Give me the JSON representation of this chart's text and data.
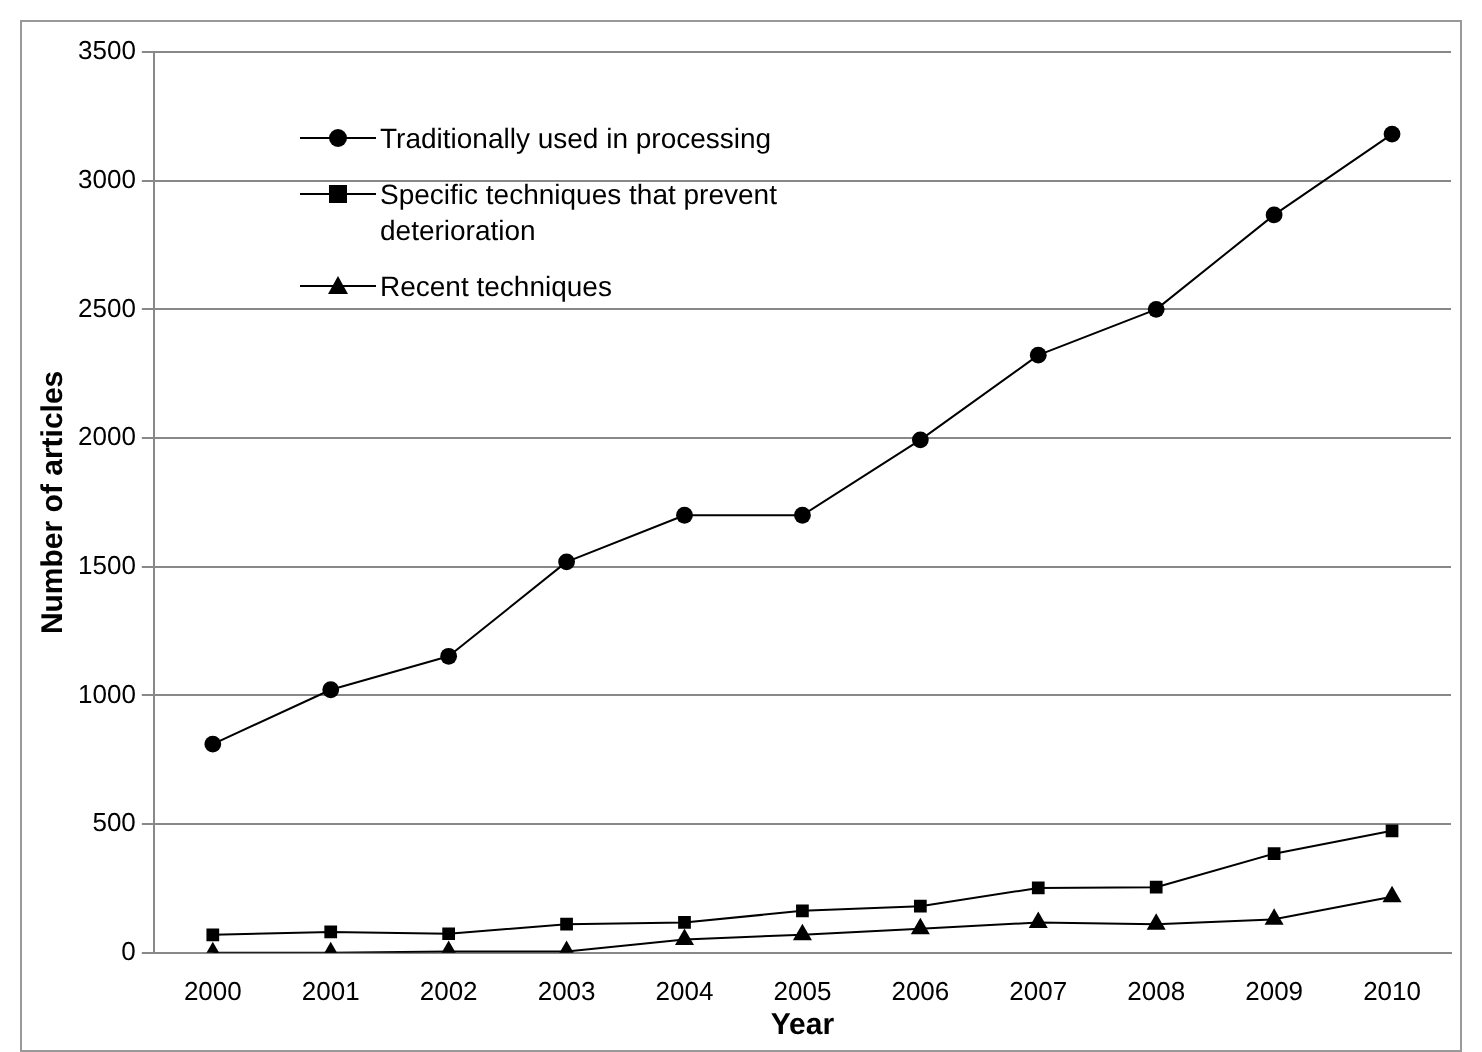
{
  "chart_data": {
    "type": "line",
    "xlabel": "Year",
    "ylabel": "Number of articles",
    "categories": [
      "2000",
      "2001",
      "2002",
      "2003",
      "2004",
      "2005",
      "2006",
      "2007",
      "2008",
      "2009",
      "2010"
    ],
    "series": [
      {
        "name": "Traditionally used in processing",
        "color": "#000000",
        "marker": "circle",
        "values": [
          811,
          1022,
          1152,
          1519,
          1700,
          1700,
          1993,
          2322,
          2500,
          2867,
          3181
        ]
      },
      {
        "name": "Specific techniques that prevent deterioration",
        "color": "#000000",
        "marker": "square",
        "values": [
          70,
          81,
          74,
          111,
          118,
          163,
          181,
          252,
          255,
          385,
          474
        ]
      },
      {
        "name": "Recent techniques",
        "color": "#000000",
        "marker": "triangle",
        "values": [
          0,
          0,
          5,
          5,
          52,
          70,
          93,
          118,
          111,
          130,
          218
        ]
      }
    ],
    "ylim": [
      0,
      3500
    ],
    "yticks": [
      0,
      500,
      1000,
      1500,
      2000,
      2500,
      3000,
      3500
    ],
    "grid": "y",
    "legend": "top left",
    "line_style": "solid"
  }
}
